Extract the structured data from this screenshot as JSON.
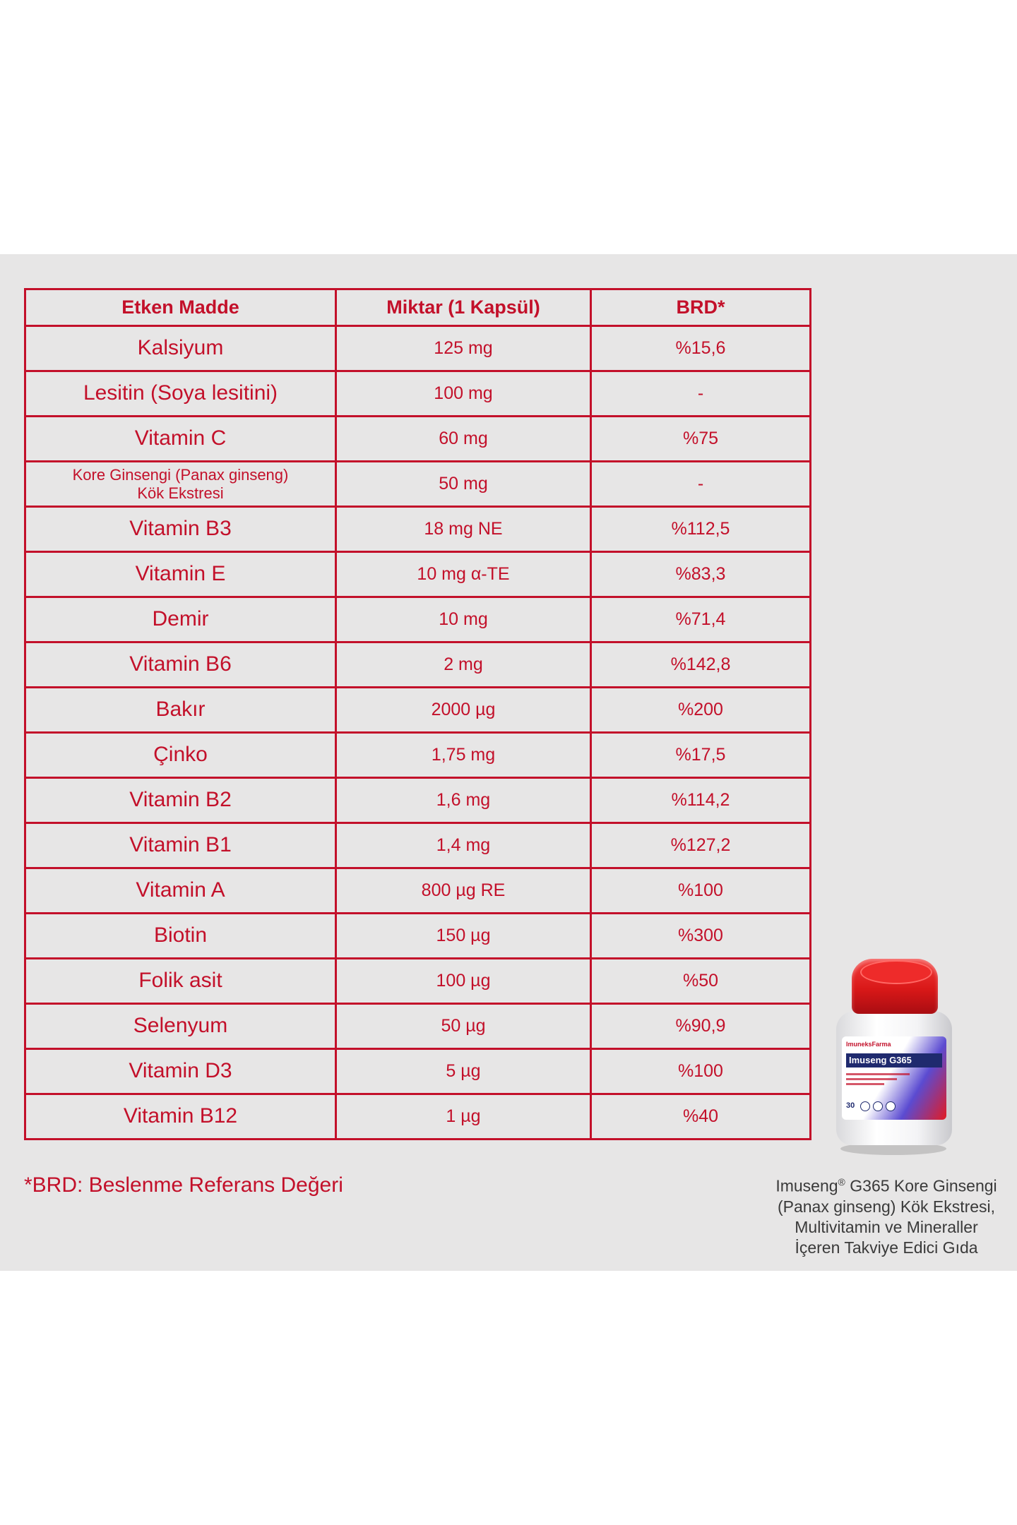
{
  "table": {
    "headers": [
      "Etken Madde",
      "Miktar (1 Kapsül)",
      "BRD*"
    ],
    "rows": [
      {
        "name": "Kalsiyum",
        "amount": "125 mg",
        "brd": "%15,6"
      },
      {
        "name": "Lesitin (Soya lesitini)",
        "amount": "100 mg",
        "brd": "-"
      },
      {
        "name": "Vitamin C",
        "amount": "60 mg",
        "brd": "%75"
      },
      {
        "name": "Kore Ginsengi (Panax ginseng)",
        "name_line2": "Kök Ekstresi",
        "amount": "50 mg",
        "brd": "-"
      },
      {
        "name": "Vitamin B3",
        "amount": "18 mg NE",
        "brd": "%112,5"
      },
      {
        "name": "Vitamin E",
        "amount": "10 mg α-TE",
        "brd": "%83,3"
      },
      {
        "name": "Demir",
        "amount": "10 mg",
        "brd": "%71,4"
      },
      {
        "name": "Vitamin B6",
        "amount": "2 mg",
        "brd": "%142,8"
      },
      {
        "name": "Bakır",
        "amount": "2000 µg",
        "brd": "%200"
      },
      {
        "name": "Çinko",
        "amount": "1,75 mg",
        "brd": "%17,5"
      },
      {
        "name": "Vitamin B2",
        "amount": "1,6 mg",
        "brd": "%114,2"
      },
      {
        "name": "Vitamin B1",
        "amount": "1,4 mg",
        "brd": "%127,2"
      },
      {
        "name": "Vitamin A",
        "amount": "800 µg RE",
        "brd": "%100"
      },
      {
        "name": "Biotin",
        "amount": "150 µg",
        "brd": "%300"
      },
      {
        "name": "Folik asit",
        "amount": "100 µg",
        "brd": "%50"
      },
      {
        "name": "Selenyum",
        "amount": "50 µg",
        "brd": "%90,9"
      },
      {
        "name": "Vitamin D3",
        "amount": "5 µg",
        "brd": "%100"
      },
      {
        "name": "Vitamin B12",
        "amount": "1 µg",
        "brd": "%40"
      }
    ]
  },
  "footnote": "*BRD: Beslenme Referans Değeri",
  "product": {
    "brand": "ImuneksFarma",
    "name": "Imuseng G365",
    "count": "30",
    "caption_l1_a": "Imuseng",
    "caption_reg": "®",
    "caption_l1_b": " G365 Kore Ginsengi",
    "caption_l2": "(Panax ginseng) Kök Ekstresi,",
    "caption_l3": "Multivitamin ve Mineraller",
    "caption_l4": "İçeren Takviye Edici Gıda"
  },
  "colors": {
    "accent": "#c3102a",
    "panel": "#e7e6e6",
    "caption": "#3a3a3a"
  }
}
